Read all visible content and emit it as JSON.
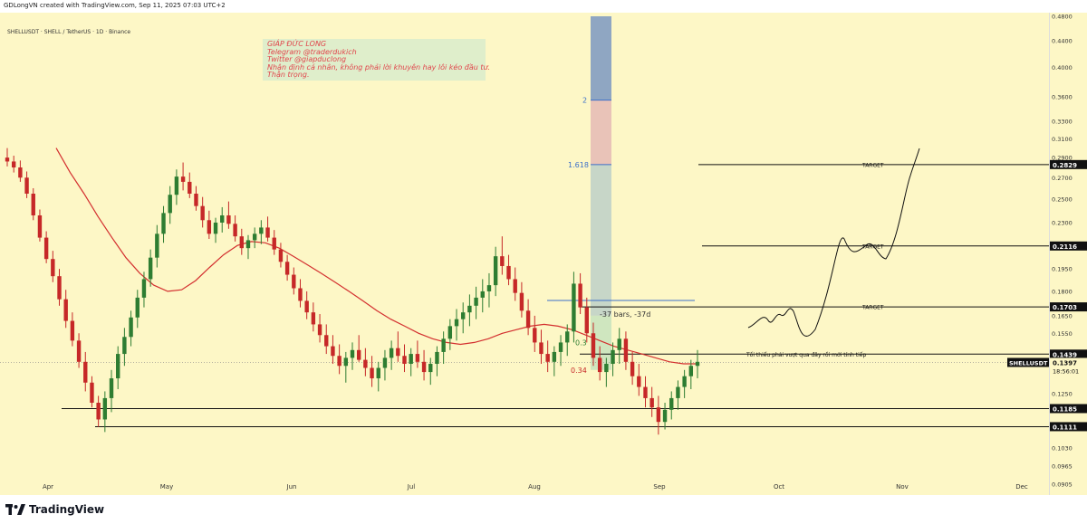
{
  "header": {
    "credit": "GDLongVN created with TradingView.com, Sep 11, 2025 07:03 UTC+2"
  },
  "symbol_label": "SHELLUSDT · SHELL / TetherUS · 1D · Binance",
  "note": {
    "lines": [
      "GIÁP ĐỨC LONG",
      "Telegram @traderdukich",
      "Twitter @giapduclong",
      "Nhận định cá nhân, không phải lời khuyên hay lôi kéo đầu tư.",
      "Thận trọng."
    ]
  },
  "footer": {
    "brand": "TradingView"
  },
  "colors": {
    "bg": "#fdf7c6",
    "up": "#2e7d32",
    "down": "#c62828",
    "ma": "#d32f2f",
    "target_line": "#111111",
    "fib_blue": "#3b6fc9"
  },
  "chart_data": {
    "type": "candlestick",
    "symbol": "SHELLUSDT",
    "last_price": "0.1397",
    "countdown": "18:56:01",
    "y_scale": "log",
    "ylim": [
      0.0905,
      0.48
    ],
    "y_ticks": [
      "0.4800",
      "0.4400",
      "0.4000",
      "0.3600",
      "0.3300",
      "0.3100",
      "0.2900",
      "0.2700",
      "0.2500",
      "0.2300",
      "0.2100",
      "0.1950",
      "0.1800",
      "0.1650",
      "0.1550",
      "0.1439",
      "0.1397",
      "0.1250",
      "0.1185",
      "0.1111",
      "0.1030",
      "0.0965",
      "0.0905"
    ],
    "highlighted_ticks": [
      "0.2829",
      "0.2116",
      "0.1703",
      "0.1439",
      "0.1185",
      "0.1111"
    ],
    "x_labels": [
      "Apr",
      "May",
      "Jun",
      "Jul",
      "Aug",
      "Sep",
      "Oct",
      "Nov",
      "Dec"
    ],
    "targets": [
      {
        "label": "TARGET",
        "price": 0.2829
      },
      {
        "label": "TARGET",
        "price": 0.2116
      },
      {
        "label": "TARGET",
        "price": 0.1703
      }
    ],
    "levels": [
      {
        "price": 0.1439,
        "annotation": "Tối thiểu phải vượt qua đây rồi mới tính tiếp"
      },
      {
        "price": 0.1185,
        "annotation": ""
      },
      {
        "price": 0.1111,
        "annotation": ""
      }
    ],
    "fib_labels": [
      "2",
      "1.618",
      "0.3",
      "0.34"
    ],
    "measure_label": "-37 bars, -37d",
    "candles_ohlc": [
      [
        0.29,
        0.3,
        0.281,
        0.286
      ],
      [
        0.286,
        0.292,
        0.275,
        0.28
      ],
      [
        0.28,
        0.287,
        0.266,
        0.27
      ],
      [
        0.27,
        0.276,
        0.251,
        0.255
      ],
      [
        0.255,
        0.26,
        0.232,
        0.236
      ],
      [
        0.236,
        0.241,
        0.215,
        0.218
      ],
      [
        0.218,
        0.223,
        0.199,
        0.202
      ],
      [
        0.202,
        0.208,
        0.186,
        0.19
      ],
      [
        0.19,
        0.195,
        0.171,
        0.175
      ],
      [
        0.175,
        0.181,
        0.158,
        0.162
      ],
      [
        0.162,
        0.167,
        0.148,
        0.151
      ],
      [
        0.151,
        0.155,
        0.137,
        0.14
      ],
      [
        0.14,
        0.145,
        0.126,
        0.13
      ],
      [
        0.13,
        0.133,
        0.119,
        0.121
      ],
      [
        0.121,
        0.124,
        0.111,
        0.114
      ],
      [
        0.114,
        0.126,
        0.109,
        0.123
      ],
      [
        0.123,
        0.136,
        0.117,
        0.132
      ],
      [
        0.132,
        0.148,
        0.127,
        0.144
      ],
      [
        0.144,
        0.158,
        0.138,
        0.153
      ],
      [
        0.153,
        0.168,
        0.148,
        0.164
      ],
      [
        0.164,
        0.181,
        0.158,
        0.176
      ],
      [
        0.176,
        0.193,
        0.17,
        0.188
      ],
      [
        0.188,
        0.209,
        0.183,
        0.203
      ],
      [
        0.203,
        0.228,
        0.196,
        0.221
      ],
      [
        0.221,
        0.244,
        0.214,
        0.238
      ],
      [
        0.238,
        0.262,
        0.229,
        0.254
      ],
      [
        0.254,
        0.278,
        0.245,
        0.271
      ],
      [
        0.271,
        0.285,
        0.258,
        0.266
      ],
      [
        0.266,
        0.275,
        0.251,
        0.255
      ],
      [
        0.255,
        0.262,
        0.24,
        0.244
      ],
      [
        0.244,
        0.252,
        0.226,
        0.232
      ],
      [
        0.232,
        0.24,
        0.217,
        0.221
      ],
      [
        0.221,
        0.234,
        0.214,
        0.23
      ],
      [
        0.23,
        0.243,
        0.222,
        0.236
      ],
      [
        0.236,
        0.248,
        0.225,
        0.229
      ],
      [
        0.229,
        0.236,
        0.215,
        0.219
      ],
      [
        0.219,
        0.225,
        0.205,
        0.21
      ],
      [
        0.21,
        0.22,
        0.202,
        0.216
      ],
      [
        0.216,
        0.226,
        0.21,
        0.221
      ],
      [
        0.221,
        0.232,
        0.213,
        0.226
      ],
      [
        0.226,
        0.235,
        0.215,
        0.218
      ],
      [
        0.218,
        0.224,
        0.205,
        0.209
      ],
      [
        0.209,
        0.214,
        0.196,
        0.2
      ],
      [
        0.2,
        0.205,
        0.187,
        0.191
      ],
      [
        0.191,
        0.196,
        0.178,
        0.182
      ],
      [
        0.182,
        0.188,
        0.17,
        0.174
      ],
      [
        0.174,
        0.18,
        0.163,
        0.167
      ],
      [
        0.167,
        0.173,
        0.156,
        0.16
      ],
      [
        0.16,
        0.166,
        0.15,
        0.154
      ],
      [
        0.154,
        0.16,
        0.144,
        0.148
      ],
      [
        0.148,
        0.154,
        0.139,
        0.143
      ],
      [
        0.143,
        0.149,
        0.134,
        0.138
      ],
      [
        0.138,
        0.145,
        0.13,
        0.142
      ],
      [
        0.142,
        0.15,
        0.136,
        0.146
      ],
      [
        0.146,
        0.154,
        0.14,
        0.141
      ],
      [
        0.141,
        0.147,
        0.133,
        0.137
      ],
      [
        0.137,
        0.143,
        0.128,
        0.132
      ],
      [
        0.132,
        0.14,
        0.126,
        0.137
      ],
      [
        0.137,
        0.146,
        0.131,
        0.142
      ],
      [
        0.142,
        0.151,
        0.136,
        0.147
      ],
      [
        0.147,
        0.156,
        0.14,
        0.143
      ],
      [
        0.143,
        0.149,
        0.135,
        0.139
      ],
      [
        0.139,
        0.147,
        0.133,
        0.144
      ],
      [
        0.144,
        0.151,
        0.137,
        0.14
      ],
      [
        0.14,
        0.146,
        0.131,
        0.135
      ],
      [
        0.135,
        0.142,
        0.129,
        0.139
      ],
      [
        0.139,
        0.148,
        0.133,
        0.145
      ],
      [
        0.145,
        0.156,
        0.139,
        0.152
      ],
      [
        0.152,
        0.163,
        0.146,
        0.159
      ],
      [
        0.159,
        0.169,
        0.151,
        0.163
      ],
      [
        0.163,
        0.173,
        0.155,
        0.167
      ],
      [
        0.167,
        0.178,
        0.159,
        0.171
      ],
      [
        0.171,
        0.183,
        0.163,
        0.176
      ],
      [
        0.176,
        0.188,
        0.167,
        0.18
      ],
      [
        0.18,
        0.192,
        0.17,
        0.184
      ],
      [
        0.184,
        0.211,
        0.177,
        0.204
      ],
      [
        0.204,
        0.219,
        0.191,
        0.197
      ],
      [
        0.197,
        0.205,
        0.184,
        0.188
      ],
      [
        0.188,
        0.196,
        0.174,
        0.179
      ],
      [
        0.179,
        0.186,
        0.164,
        0.168
      ],
      [
        0.168,
        0.175,
        0.154,
        0.158
      ],
      [
        0.158,
        0.165,
        0.145,
        0.15
      ],
      [
        0.15,
        0.157,
        0.139,
        0.144
      ],
      [
        0.144,
        0.151,
        0.135,
        0.14
      ],
      [
        0.14,
        0.148,
        0.133,
        0.145
      ],
      [
        0.145,
        0.154,
        0.138,
        0.15
      ],
      [
        0.15,
        0.16,
        0.143,
        0.156
      ],
      [
        0.156,
        0.193,
        0.15,
        0.185
      ],
      [
        0.185,
        0.192,
        0.166,
        0.17
      ],
      [
        0.17,
        0.176,
        0.15,
        0.155
      ],
      [
        0.155,
        0.161,
        0.138,
        0.142
      ],
      [
        0.142,
        0.148,
        0.131,
        0.135
      ],
      [
        0.135,
        0.142,
        0.128,
        0.139
      ],
      [
        0.139,
        0.15,
        0.133,
        0.146
      ],
      [
        0.146,
        0.158,
        0.139,
        0.152
      ],
      [
        0.152,
        0.156,
        0.136,
        0.14
      ],
      [
        0.14,
        0.145,
        0.129,
        0.133
      ],
      [
        0.133,
        0.139,
        0.124,
        0.128
      ],
      [
        0.128,
        0.133,
        0.119,
        0.123
      ],
      [
        0.123,
        0.128,
        0.115,
        0.119
      ],
      [
        0.119,
        0.124,
        0.108,
        0.113
      ],
      [
        0.113,
        0.121,
        0.11,
        0.118
      ],
      [
        0.118,
        0.126,
        0.114,
        0.123
      ],
      [
        0.123,
        0.131,
        0.118,
        0.128
      ],
      [
        0.128,
        0.136,
        0.123,
        0.133
      ],
      [
        0.133,
        0.141,
        0.127,
        0.138
      ],
      [
        0.138,
        0.146,
        0.132,
        0.14
      ]
    ],
    "ma_values": [
      0.3,
      0.275,
      0.255,
      0.235,
      0.218,
      0.203,
      0.192,
      0.184,
      0.18,
      0.181,
      0.187,
      0.196,
      0.205,
      0.212,
      0.215,
      0.214,
      0.21,
      0.204,
      0.198,
      0.192,
      0.186,
      0.18,
      0.174,
      0.168,
      0.163,
      0.159,
      0.155,
      0.152,
      0.15,
      0.149,
      0.15,
      0.152,
      0.155,
      0.157,
      0.159,
      0.16,
      0.159,
      0.157,
      0.154,
      0.151,
      0.148,
      0.146,
      0.144,
      0.142,
      0.14,
      0.139,
      0.139
    ]
  }
}
